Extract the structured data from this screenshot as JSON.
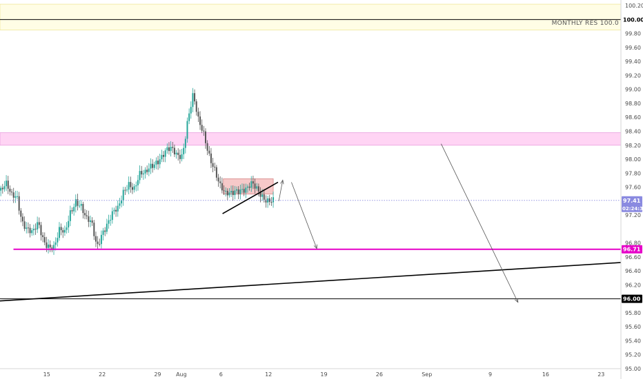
{
  "chart_data": {
    "type": "candlestick",
    "title": "",
    "xlabel": "",
    "ylabel": "",
    "ylim": [
      95.0,
      100.28
    ],
    "y_ticks": [
      "100.20",
      "99.80",
      "99.60",
      "99.40",
      "99.20",
      "99.00",
      "98.80",
      "98.60",
      "98.40",
      "98.20",
      "98.00",
      "97.80",
      "97.60",
      "97.20",
      "96.80",
      "96.60",
      "96.40",
      "96.20",
      "95.80",
      "95.60",
      "95.40",
      "95.20",
      "95.00"
    ],
    "x_ticks": [
      {
        "label": "15",
        "day": 15
      },
      {
        "label": "22",
        "day": 22
      },
      {
        "label": "29",
        "day": 29
      },
      {
        "label": "Aug",
        "day": 32
      },
      {
        "label": "6",
        "day": 37
      },
      {
        "label": "12",
        "day": 43
      },
      {
        "label": "19",
        "day": 50
      },
      {
        "label": "26",
        "day": 57
      },
      {
        "label": "Sep",
        "day": 63
      },
      {
        "label": "9",
        "day": 71
      },
      {
        "label": "16",
        "day": 78
      },
      {
        "label": "23",
        "day": 85
      }
    ],
    "x_domain": [
      9.1,
      87.5
    ],
    "price_close": [
      97.55,
      97.6,
      97.45,
      97.5,
      97.15,
      97.0,
      96.9,
      97.05,
      96.85,
      96.8,
      96.75,
      96.95,
      96.9,
      97.25,
      97.45,
      97.35,
      97.1,
      97.05,
      96.75,
      97.0,
      97.1,
      97.2,
      97.25,
      97.55,
      97.7,
      97.6,
      97.75,
      97.75,
      97.9,
      98.0,
      98.05,
      98.1,
      98.1,
      98.05,
      98.1,
      98.6,
      98.9,
      98.5,
      98.35,
      98.1,
      97.9,
      97.6,
      97.45,
      97.5,
      97.6,
      97.6,
      97.55,
      97.6,
      97.55,
      97.5,
      97.45,
      97.4
    ],
    "price_range": [
      95.0,
      100.28
    ],
    "bands": [
      {
        "name": "monthly-res-zone",
        "from": 99.85,
        "to": 100.22,
        "color": "#fffde0",
        "edge": "#f0e89a"
      },
      {
        "name": "resistance-zone",
        "from": 98.2,
        "to": 98.38,
        "color": "#ffccf2",
        "edge": "#e8a0df"
      },
      {
        "name": "consolidation-box",
        "from": 97.5,
        "to": 97.72,
        "color": "#f4c0c0",
        "edge": "#d88a8a"
      }
    ],
    "levels": [
      {
        "name": "monthly-res",
        "value": 100.0,
        "color": "#000000",
        "label": "100.00",
        "note": "MONTHLY RES 100.0"
      },
      {
        "name": "support",
        "value": 96.71,
        "color": "#e600c8",
        "label": "96.71"
      },
      {
        "name": "level-96",
        "value": 96.0,
        "color": "#000000",
        "label": "96.00"
      },
      {
        "name": "last-price",
        "value": 97.41,
        "color": "#8888dd",
        "label": "97.41"
      }
    ],
    "countdown": "02:24:36",
    "trendlines": [
      {
        "name": "long-trendline",
        "from": [
          9.1,
          95.97
        ],
        "to": [
          87.5,
          96.52
        ],
        "color": "#000000"
      },
      {
        "name": "wedge-line",
        "from": [
          37.2,
          97.22
        ],
        "to": [
          44.2,
          97.67
        ],
        "color": "#000000"
      }
    ],
    "arrows": [
      {
        "name": "arrow-up-small",
        "from": [
          44.3,
          97.4
        ],
        "to": [
          44.8,
          97.7
        ]
      },
      {
        "name": "arrow-down-mid",
        "from": [
          45.9,
          97.67
        ],
        "to": [
          49.1,
          96.72
        ]
      },
      {
        "name": "arrow-down-right",
        "from": [
          64.8,
          98.22
        ],
        "to": [
          74.5,
          95.95
        ]
      }
    ],
    "colors": {
      "up": "#26a69a",
      "down": "#555555",
      "axis_text": "#4a4a4a",
      "grid": "#ececec"
    }
  }
}
